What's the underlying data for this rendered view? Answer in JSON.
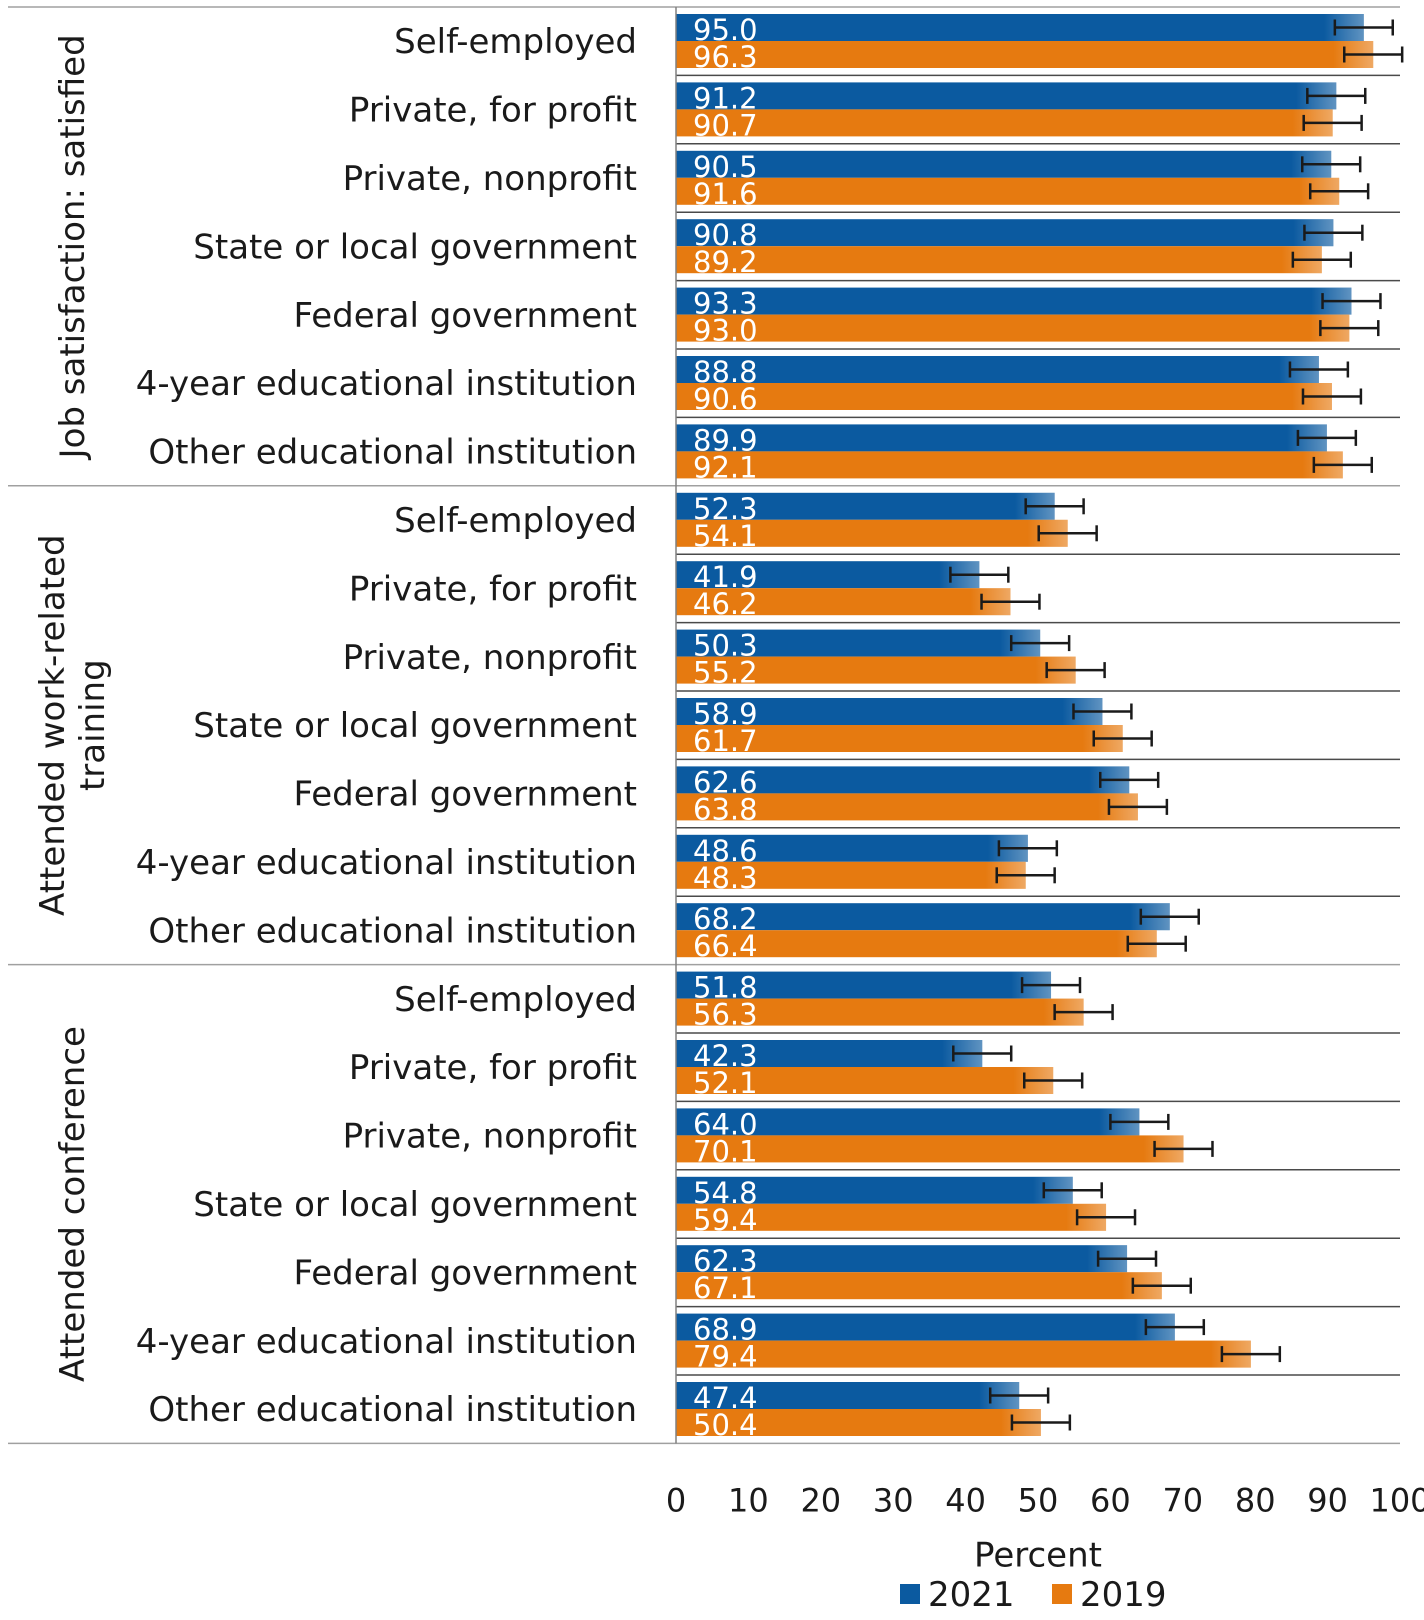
{
  "chart_data": {
    "type": "bar",
    "orientation": "horizontal",
    "xlabel": "Percent",
    "xlim": [
      0,
      100
    ],
    "xticks": [
      0,
      10,
      20,
      30,
      40,
      50,
      60,
      70,
      80,
      90,
      100
    ],
    "categories": [
      "Self-employed",
      "Private, for profit",
      "Private, nonprofit",
      "State or local government",
      "Federal government",
      "4-year educational institution",
      "Other educational institution"
    ],
    "legend": {
      "position": "bottom",
      "entries": [
        {
          "name": "2021",
          "color": "#0b5aa0"
        },
        {
          "name": "2019",
          "color": "#e67a10"
        }
      ]
    },
    "groups": [
      {
        "label": "Job satisfaction: satisfied",
        "series": [
          {
            "name": "2021",
            "values": [
              95.0,
              91.2,
              90.5,
              90.8,
              93.3,
              88.8,
              89.9
            ],
            "labels": [
              "95.0",
              "91.2",
              "90.5",
              "90.8",
              "93.3",
              "88.8",
              "89.9"
            ]
          },
          {
            "name": "2019",
            "values": [
              96.3,
              90.7,
              91.6,
              89.2,
              93.0,
              90.6,
              92.1
            ],
            "labels": [
              "96.3",
              "90.7",
              "91.6",
              "89.2",
              "93.0",
              "90.6",
              "92.1"
            ]
          }
        ]
      },
      {
        "label": "Attended work-related training",
        "series": [
          {
            "name": "2021",
            "values": [
              52.3,
              41.9,
              50.3,
              58.9,
              62.6,
              48.6,
              68.2
            ],
            "labels": [
              "52.3",
              "41.9",
              "50.3",
              "58.9",
              "62.6",
              "48.6",
              "68.2"
            ]
          },
          {
            "name": "2019",
            "values": [
              54.1,
              46.2,
              55.2,
              61.7,
              63.8,
              48.3,
              66.4
            ],
            "labels": [
              "54.1",
              "46.2",
              "55.2",
              "61.7",
              "63.8",
              "48.3",
              "66.4"
            ]
          }
        ]
      },
      {
        "label": "Attended conference",
        "series": [
          {
            "name": "2021",
            "values": [
              51.8,
              42.3,
              64.0,
              54.8,
              62.3,
              68.9,
              47.4
            ],
            "labels": [
              "51.8",
              "42.3",
              "64.0",
              "54.8",
              "62.3",
              "68.9",
              "47.4"
            ]
          },
          {
            "name": "2019",
            "values": [
              56.3,
              52.1,
              70.1,
              59.4,
              67.1,
              79.4,
              50.4
            ],
            "labels": [
              "56.3",
              "52.1",
              "70.1",
              "59.4",
              "67.1",
              "79.4",
              "50.4"
            ]
          }
        ]
      }
    ],
    "error_bars": true,
    "grid": false
  }
}
